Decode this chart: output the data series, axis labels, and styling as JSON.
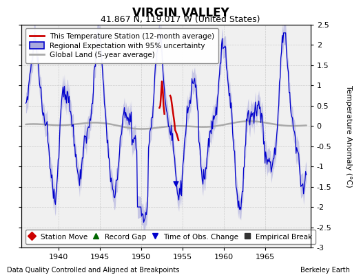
{
  "title": "VIRGIN VALLEY",
  "subtitle": "41.867 N, 119.017 W (United States)",
  "ylabel": "Temperature Anomaly (°C)",
  "xlabel_left": "Data Quality Controlled and Aligned at Breakpoints",
  "xlabel_right": "Berkeley Earth",
  "xlim": [
    1935.5,
    1970.5
  ],
  "ylim": [
    -3.0,
    2.5
  ],
  "xticks": [
    1940,
    1945,
    1950,
    1955,
    1960,
    1965
  ],
  "yticks": [
    -3,
    -2.5,
    -2,
    -1.5,
    -1,
    -0.5,
    0,
    0.5,
    1,
    1.5,
    2,
    2.5
  ],
  "blue_color": "#0000cc",
  "red_color": "#cc0000",
  "gray_color": "#aaaaaa",
  "fill_color": "#aaaadd",
  "background": "#f0f0f0",
  "grid_color": "#cccccc",
  "legend_labels": [
    "This Temperature Station (12-month average)",
    "Regional Expectation with 95% uncertainty",
    "Global Land (5-year average)"
  ],
  "bottom_legend": [
    {
      "marker": "D",
      "color": "#cc0000",
      "label": "Station Move"
    },
    {
      "marker": "^",
      "color": "#006600",
      "label": "Record Gap"
    },
    {
      "marker": "v",
      "color": "#0000cc",
      "label": "Time of Obs. Change"
    },
    {
      "marker": "s",
      "color": "#333333",
      "label": "Empirical Break"
    }
  ],
  "figsize": [
    5.24,
    4.0
  ],
  "dpi": 100
}
